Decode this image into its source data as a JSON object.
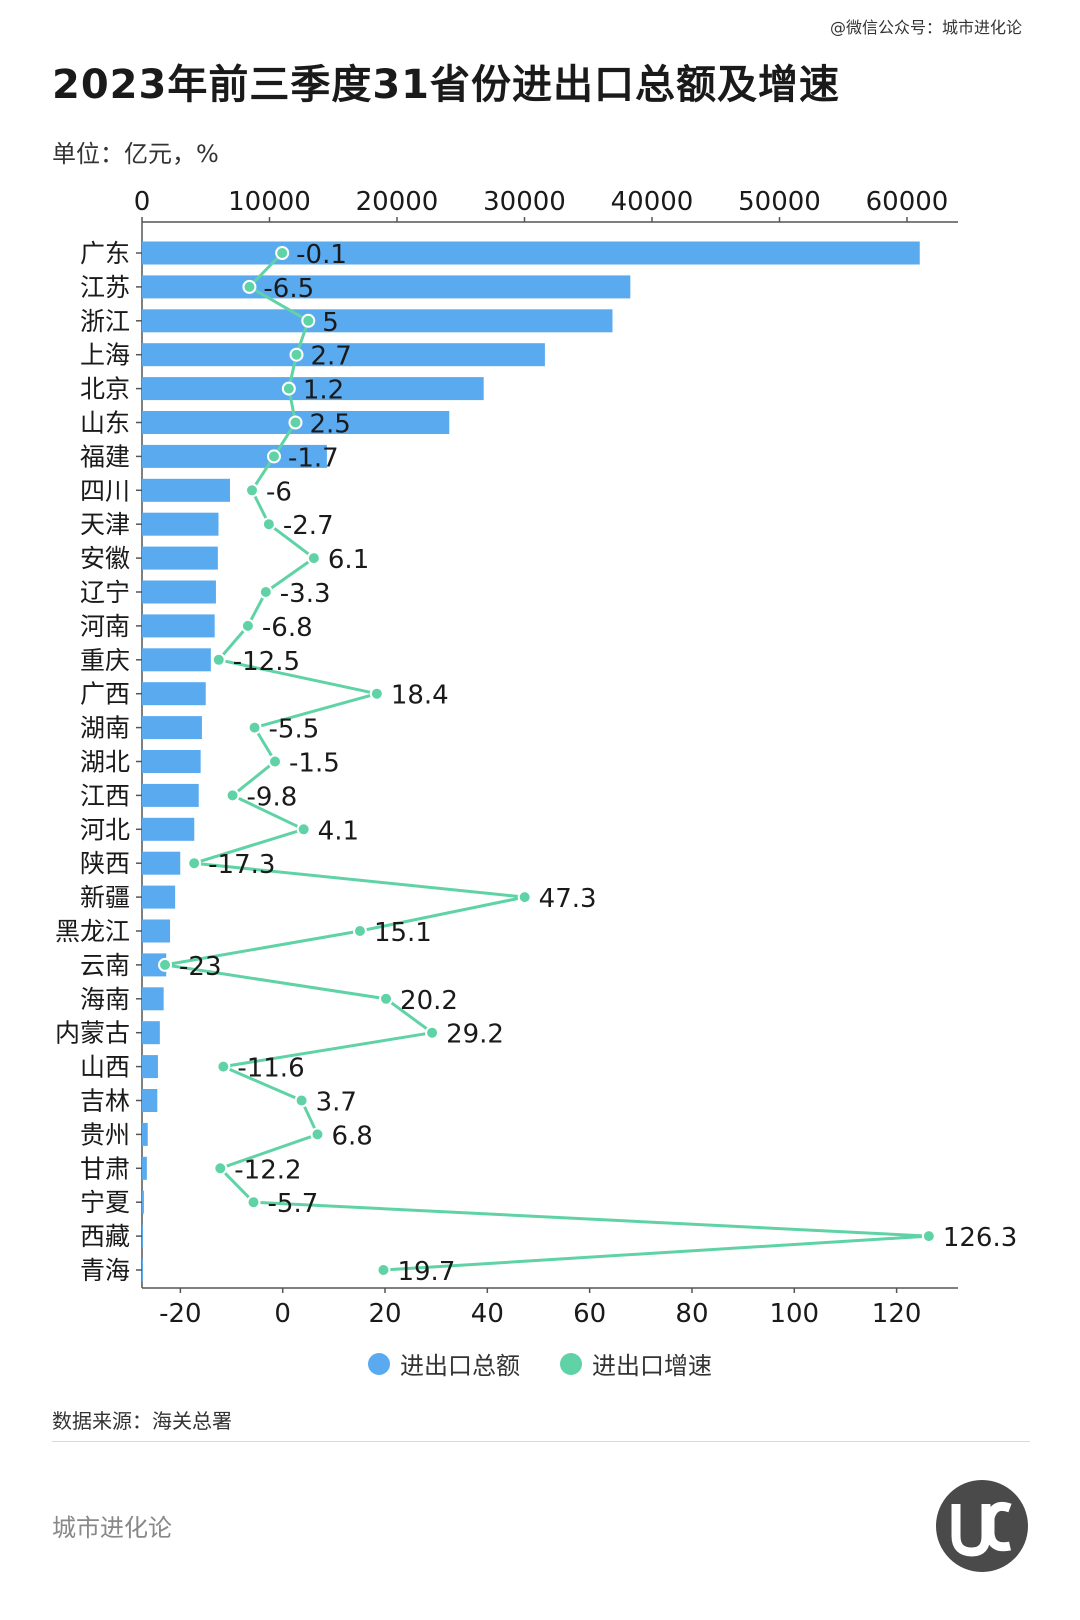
{
  "header": {
    "credit": "@微信公众号：城市进化论",
    "title": "2023年前三季度31省份进出口总额及增速",
    "unit": "单位：亿元，%"
  },
  "footer": {
    "source": "数据来源：海关总署",
    "brand": "城市进化论"
  },
  "colors": {
    "bar": "#5aaaf0",
    "line": "#5fd3a6",
    "text": "#1a1a1a"
  },
  "chart_data": {
    "type": "bar",
    "orientation": "horizontal",
    "categories": [
      "广东",
      "江苏",
      "浙江",
      "上海",
      "北京",
      "山东",
      "福建",
      "四川",
      "天津",
      "安徽",
      "辽宁",
      "河南",
      "重庆",
      "广西",
      "湖南",
      "湖北",
      "江西",
      "河北",
      "陕西",
      "新疆",
      "黑龙江",
      "云南",
      "海南",
      "内蒙古",
      "山西",
      "吉林",
      "贵州",
      "甘肃",
      "宁夏",
      "西藏",
      "青海"
    ],
    "series": [
      {
        "name": "进出口总额",
        "type": "bar",
        "axis": "top",
        "values": [
          61000,
          38300,
          36900,
          31600,
          26800,
          24100,
          14500,
          6900,
          6000,
          5950,
          5800,
          5700,
          5400,
          5000,
          4700,
          4600,
          4450,
          4100,
          3000,
          2600,
          2200,
          1900,
          1700,
          1400,
          1250,
          1200,
          450,
          380,
          150,
          60,
          40
        ]
      },
      {
        "name": "进出口增速",
        "type": "line",
        "axis": "bottom",
        "values": [
          -0.1,
          -6.5,
          5,
          2.7,
          1.2,
          2.5,
          -1.7,
          -6,
          -2.7,
          6.1,
          -3.3,
          -6.8,
          -12.5,
          18.4,
          -5.5,
          -1.5,
          -9.8,
          4.1,
          -17.3,
          47.3,
          15.1,
          -23,
          20.2,
          29.2,
          -11.6,
          3.7,
          6.8,
          -12.2,
          -5.7,
          126.3,
          19.7
        ],
        "labels": [
          "-0.1",
          "-6.5",
          "5",
          "2.7",
          "1.2",
          "2.5",
          "-1.7",
          "-6",
          "-2.7",
          "6.1",
          "-3.3",
          "-6.8",
          "-12.5",
          "18.4",
          "-5.5",
          "-1.5",
          "-9.8",
          "4.1",
          "-17.3",
          "47.3",
          "15.1",
          "-23",
          "20.2",
          "29.2",
          "-11.6",
          "3.7",
          "6.8",
          "-12.2",
          "-5.7",
          "126.3",
          "19.7"
        ]
      }
    ],
    "top_axis": {
      "range": [
        0,
        64000
      ],
      "ticks": [
        "0",
        "10000",
        "20000",
        "30000",
        "40000",
        "50000",
        "60000"
      ]
    },
    "bottom_axis": {
      "range": [
        -27.5,
        132
      ],
      "ticks": [
        "-20",
        "0",
        "20",
        "40",
        "60",
        "80",
        "100",
        "120"
      ]
    },
    "legend": [
      "进出口总额",
      "进出口增速"
    ],
    "legend_position": "bottom",
    "grid": false
  }
}
